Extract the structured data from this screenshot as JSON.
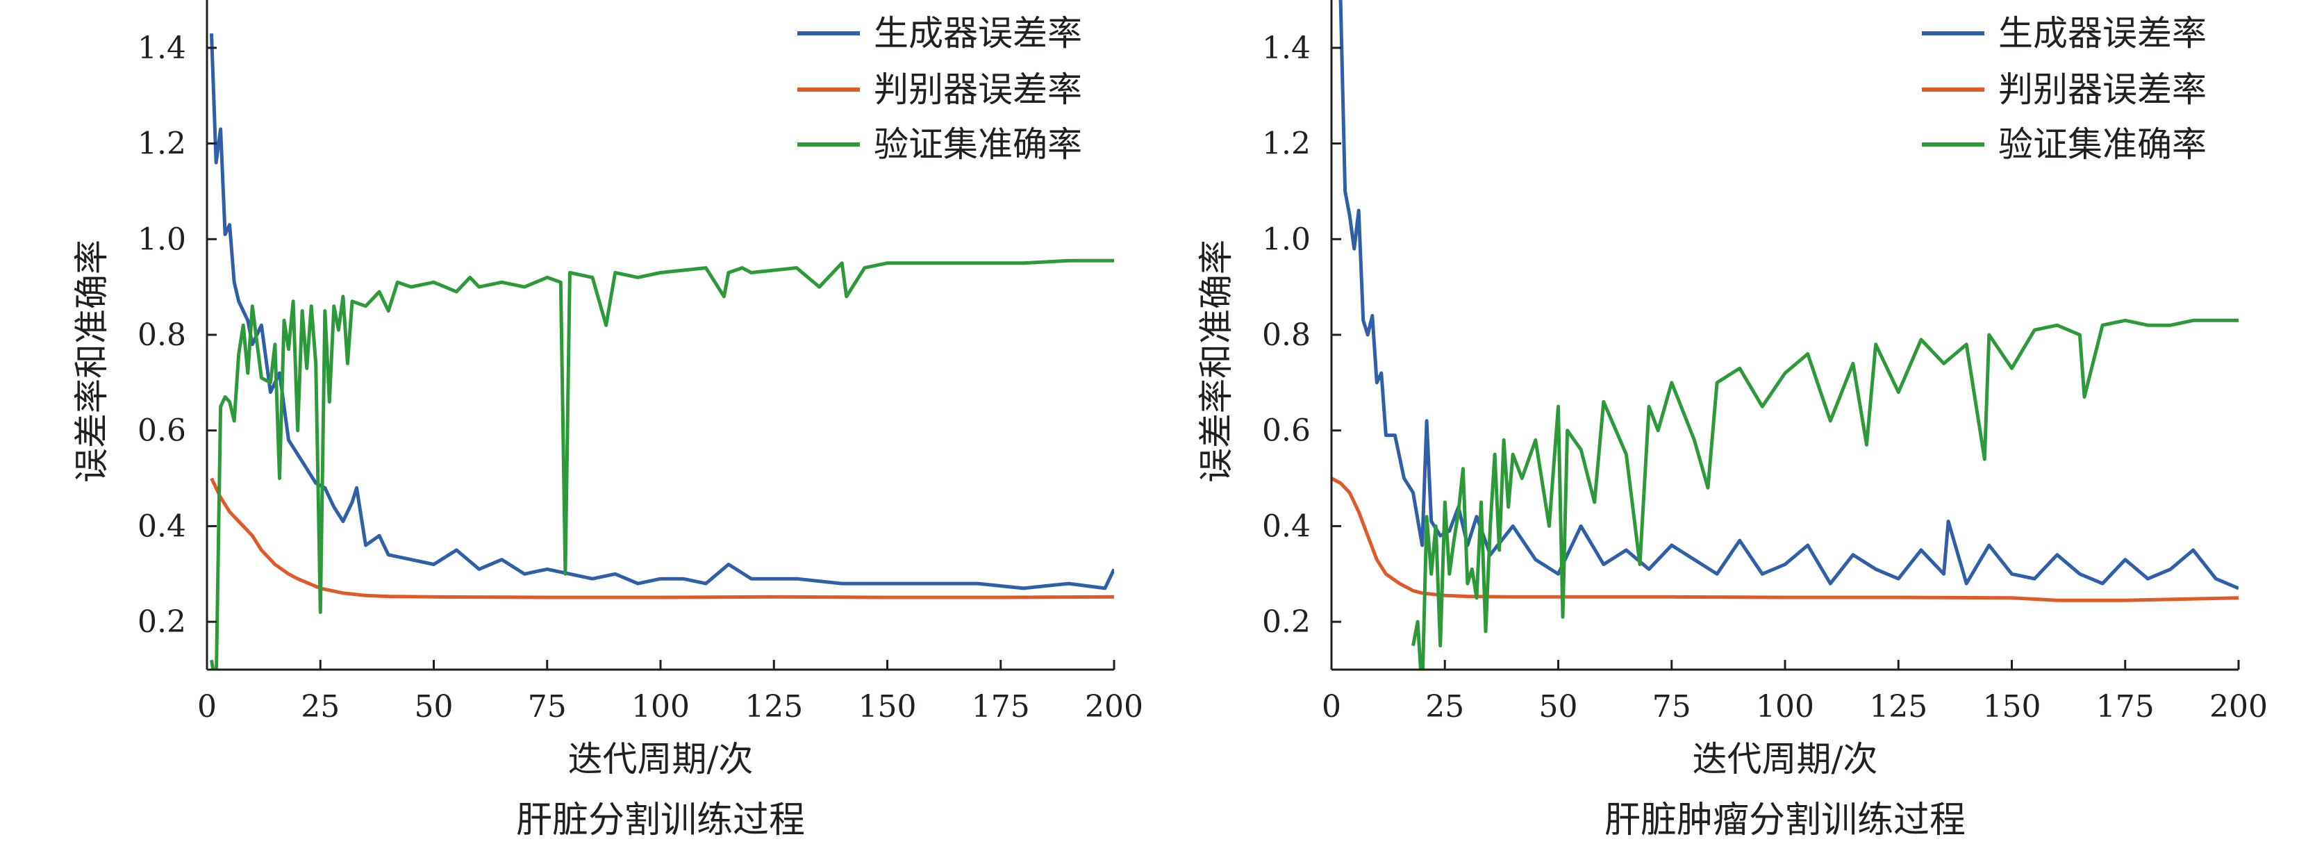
{
  "chart_data": [
    {
      "type": "line",
      "title": "肝脏分割训练过程",
      "xlabel": "迭代周期/次",
      "ylabel": "误差率和准确率",
      "xlim": [
        0,
        200
      ],
      "ylim": [
        0.1,
        1.5
      ],
      "xticks": [
        "0",
        "25",
        "50",
        "75",
        "100",
        "125",
        "150",
        "175",
        "200"
      ],
      "yticks": [
        "0.2",
        "0.4",
        "0.6",
        "0.8",
        "1.0",
        "1.2",
        "1.4"
      ],
      "grid": false,
      "legend_position": "top-right",
      "series": [
        {
          "name": "生成器误差率",
          "color": "#2e5fa8",
          "x": [
            1,
            2,
            3,
            4,
            5,
            6,
            7,
            8,
            9,
            10,
            12,
            14,
            16,
            18,
            20,
            22,
            24,
            26,
            28,
            30,
            32,
            33,
            35,
            38,
            40,
            45,
            50,
            55,
            60,
            65,
            70,
            75,
            80,
            85,
            90,
            95,
            100,
            105,
            110,
            115,
            120,
            130,
            140,
            150,
            160,
            170,
            180,
            190,
            198,
            200
          ],
          "y": [
            1.43,
            1.16,
            1.23,
            1.01,
            1.03,
            0.91,
            0.87,
            0.85,
            0.83,
            0.78,
            0.82,
            0.68,
            0.72,
            0.58,
            0.55,
            0.52,
            0.49,
            0.48,
            0.44,
            0.41,
            0.45,
            0.48,
            0.36,
            0.38,
            0.34,
            0.33,
            0.32,
            0.35,
            0.31,
            0.33,
            0.3,
            0.31,
            0.3,
            0.29,
            0.3,
            0.28,
            0.29,
            0.29,
            0.28,
            0.32,
            0.29,
            0.29,
            0.28,
            0.28,
            0.28,
            0.28,
            0.27,
            0.28,
            0.27,
            0.31
          ]
        },
        {
          "name": "判别器误差率",
          "color": "#e05a28",
          "x": [
            1,
            3,
            5,
            8,
            10,
            12,
            15,
            18,
            20,
            25,
            30,
            35,
            40,
            50,
            75,
            100,
            125,
            150,
            175,
            200
          ],
          "y": [
            0.5,
            0.46,
            0.43,
            0.4,
            0.38,
            0.35,
            0.32,
            0.3,
            0.29,
            0.27,
            0.26,
            0.255,
            0.253,
            0.252,
            0.251,
            0.251,
            0.252,
            0.251,
            0.251,
            0.252
          ]
        },
        {
          "name": "验证集准确率",
          "color": "#2d9a3a",
          "x": [
            1,
            2,
            3,
            4,
            5,
            6,
            7,
            8,
            9,
            10,
            12,
            14,
            15,
            16,
            17,
            18,
            19,
            20,
            21,
            22,
            23,
            24,
            25,
            26,
            27,
            28,
            29,
            30,
            31,
            32,
            35,
            38,
            40,
            42,
            45,
            50,
            55,
            58,
            60,
            65,
            70,
            75,
            78,
            79,
            80,
            85,
            88,
            90,
            95,
            100,
            110,
            114,
            115,
            118,
            120,
            130,
            135,
            140,
            141,
            145,
            150,
            160,
            170,
            180,
            190,
            200
          ],
          "y": [
            0.12,
            0.06,
            0.65,
            0.67,
            0.66,
            0.62,
            0.76,
            0.82,
            0.72,
            0.86,
            0.71,
            0.7,
            0.78,
            0.5,
            0.83,
            0.77,
            0.87,
            0.6,
            0.85,
            0.73,
            0.86,
            0.74,
            0.22,
            0.85,
            0.66,
            0.86,
            0.81,
            0.88,
            0.74,
            0.87,
            0.86,
            0.89,
            0.85,
            0.91,
            0.9,
            0.91,
            0.89,
            0.92,
            0.9,
            0.91,
            0.9,
            0.92,
            0.91,
            0.3,
            0.93,
            0.92,
            0.82,
            0.93,
            0.92,
            0.93,
            0.94,
            0.88,
            0.93,
            0.94,
            0.93,
            0.94,
            0.9,
            0.95,
            0.88,
            0.94,
            0.95,
            0.95,
            0.95,
            0.95,
            0.955,
            0.955
          ]
        }
      ]
    },
    {
      "type": "line",
      "title": "肝脏肿瘤分割训练过程",
      "xlabel": "迭代周期/次",
      "ylabel": "误差率和准确率",
      "xlim": [
        0,
        200
      ],
      "ylim": [
        0.1,
        1.5
      ],
      "xticks": [
        "0",
        "25",
        "50",
        "75",
        "100",
        "125",
        "150",
        "175",
        "200"
      ],
      "yticks": [
        "0.2",
        "0.4",
        "0.6",
        "0.8",
        "1.0",
        "1.2",
        "1.4"
      ],
      "grid": false,
      "legend_position": "top-right",
      "series": [
        {
          "name": "生成器误差率",
          "color": "#2e5fa8",
          "x": [
            1,
            2,
            3,
            4,
            5,
            6,
            7,
            8,
            9,
            10,
            11,
            12,
            14,
            16,
            18,
            20,
            21,
            22,
            24,
            26,
            28,
            30,
            32,
            35,
            40,
            45,
            50,
            55,
            60,
            65,
            70,
            75,
            80,
            85,
            90,
            95,
            100,
            105,
            110,
            115,
            120,
            125,
            130,
            135,
            136,
            140,
            145,
            150,
            155,
            160,
            165,
            170,
            175,
            180,
            185,
            190,
            195,
            200
          ],
          "y": [
            1.52,
            1.5,
            1.1,
            1.05,
            0.98,
            1.06,
            0.83,
            0.8,
            0.84,
            0.7,
            0.72,
            0.59,
            0.59,
            0.5,
            0.47,
            0.36,
            0.62,
            0.41,
            0.38,
            0.39,
            0.44,
            0.36,
            0.42,
            0.34,
            0.4,
            0.33,
            0.3,
            0.4,
            0.32,
            0.35,
            0.31,
            0.36,
            0.33,
            0.3,
            0.37,
            0.3,
            0.32,
            0.36,
            0.28,
            0.34,
            0.31,
            0.29,
            0.35,
            0.3,
            0.41,
            0.28,
            0.36,
            0.3,
            0.29,
            0.34,
            0.3,
            0.28,
            0.33,
            0.29,
            0.31,
            0.35,
            0.29,
            0.27
          ]
        },
        {
          "name": "判别器误差率",
          "color": "#e05a28",
          "x": [
            0,
            2,
            4,
            6,
            8,
            10,
            12,
            15,
            18,
            20,
            25,
            30,
            40,
            50,
            75,
            100,
            125,
            150,
            160,
            175,
            200
          ],
          "y": [
            0.5,
            0.49,
            0.47,
            0.43,
            0.38,
            0.33,
            0.3,
            0.28,
            0.265,
            0.26,
            0.255,
            0.253,
            0.252,
            0.252,
            0.252,
            0.251,
            0.251,
            0.25,
            0.245,
            0.245,
            0.25
          ]
        },
        {
          "name": "验证集准确率",
          "color": "#2d9a3a",
          "x": [
            18,
            19,
            20,
            21,
            22,
            23,
            24,
            25,
            26,
            27,
            28,
            29,
            30,
            31,
            32,
            33,
            34,
            35,
            36,
            37,
            38,
            39,
            40,
            42,
            45,
            48,
            50,
            51,
            52,
            55,
            58,
            60,
            65,
            68,
            70,
            72,
            75,
            80,
            83,
            85,
            90,
            95,
            100,
            105,
            110,
            115,
            118,
            120,
            125,
            130,
            135,
            140,
            144,
            145,
            150,
            155,
            160,
            165,
            166,
            170,
            175,
            180,
            185,
            190,
            195,
            200
          ],
          "y": [
            0.15,
            0.2,
            0.05,
            0.42,
            0.3,
            0.4,
            0.15,
            0.45,
            0.3,
            0.37,
            0.43,
            0.52,
            0.28,
            0.31,
            0.25,
            0.45,
            0.18,
            0.4,
            0.55,
            0.35,
            0.58,
            0.44,
            0.55,
            0.5,
            0.58,
            0.4,
            0.65,
            0.21,
            0.6,
            0.56,
            0.45,
            0.66,
            0.55,
            0.32,
            0.65,
            0.6,
            0.7,
            0.58,
            0.48,
            0.7,
            0.73,
            0.65,
            0.72,
            0.76,
            0.62,
            0.74,
            0.57,
            0.78,
            0.68,
            0.79,
            0.74,
            0.78,
            0.54,
            0.8,
            0.73,
            0.81,
            0.82,
            0.8,
            0.67,
            0.82,
            0.83,
            0.82,
            0.82,
            0.83,
            0.83,
            0.83
          ]
        }
      ]
    }
  ]
}
